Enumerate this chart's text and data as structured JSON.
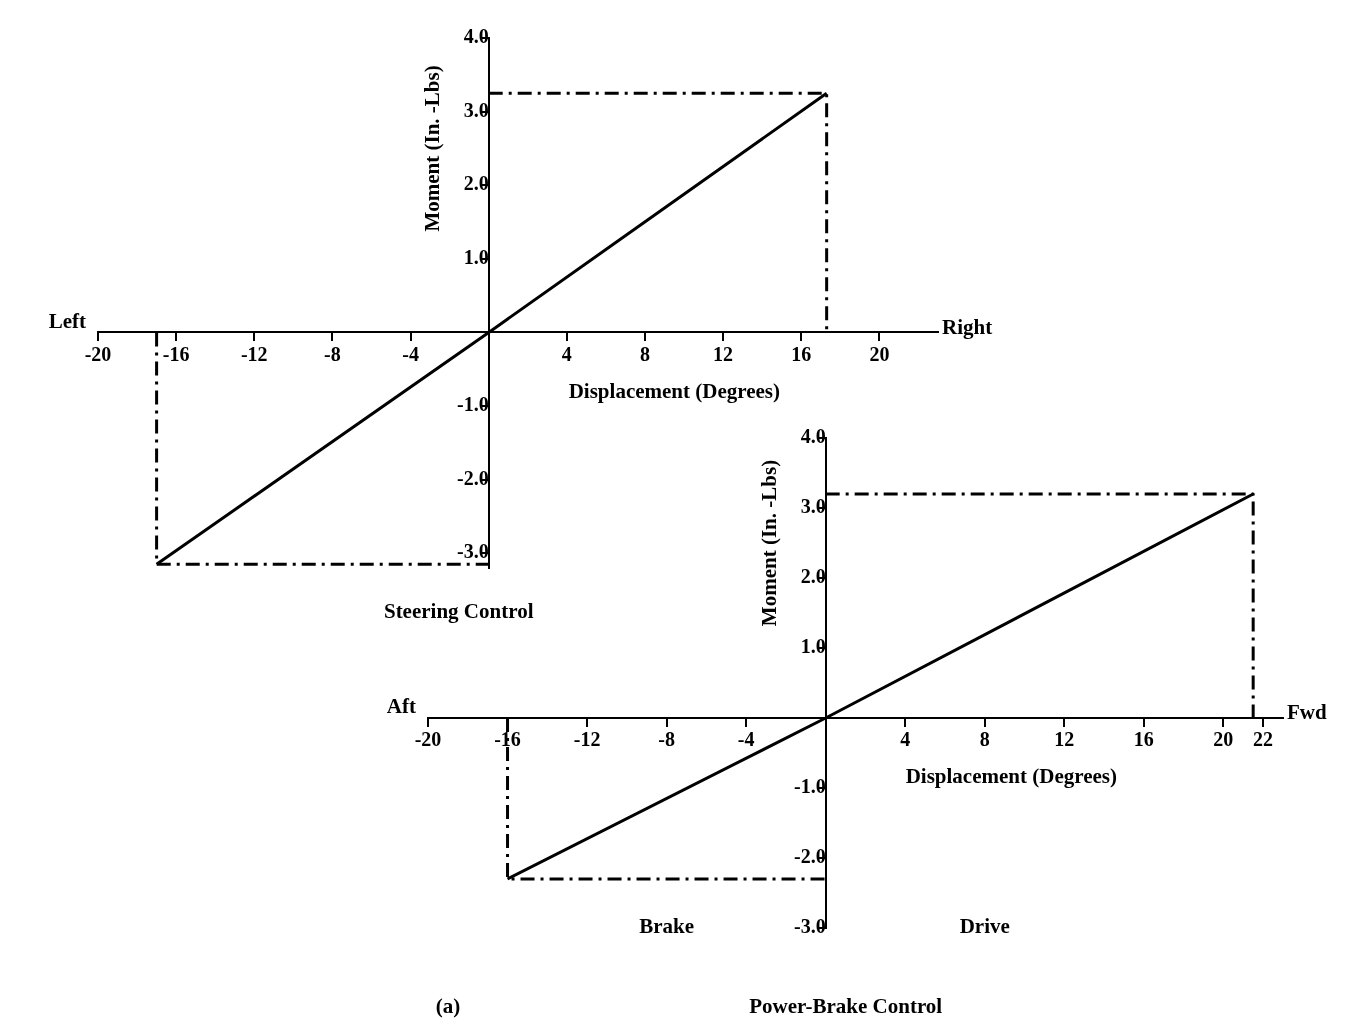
{
  "chart_data": [
    {
      "type": "line",
      "title": "Steering Control",
      "xlabel": "Displacement (Degrees)",
      "ylabel": "Moment (In. -Lbs)",
      "annotations": [
        "Left",
        "Right"
      ],
      "xlim": [
        -20,
        23
      ],
      "ylim": [
        -3.2,
        4
      ],
      "xticks": [
        -20,
        -16,
        -12,
        -8,
        -4,
        4,
        8,
        12,
        16,
        20
      ],
      "yticks": [
        {
          "value": -3,
          "label": "-3.0"
        },
        {
          "value": -2,
          "label": "-2.0"
        },
        {
          "value": -1,
          "label": "-1.0"
        },
        {
          "value": 1,
          "label": "1.0"
        },
        {
          "value": 2,
          "label": "2.0"
        },
        {
          "value": 3,
          "label": "3.0"
        },
        {
          "value": 4,
          "label": "4.0"
        }
      ],
      "grid": false,
      "legend": false,
      "marker": "none",
      "series": [
        {
          "color": "#000000",
          "x": [
            -17,
            0,
            17.3
          ],
          "values": [
            -3.15,
            0,
            3.25
          ]
        },
        {
          "color": "#000000",
          "line_style": "dashed",
          "x": [
            0,
            17.3,
            17.3
          ],
          "values": [
            3.25,
            3.25,
            0
          ]
        },
        {
          "color": "#000000",
          "line_style": "dashed",
          "x": [
            -17,
            -17,
            0
          ],
          "values": [
            0,
            -3.15,
            -3.15
          ]
        }
      ]
    },
    {
      "type": "line",
      "title": "Power-Brake Control",
      "xlabel": "Displacement (Degrees)",
      "ylabel": "Moment (In. -Lbs)",
      "annotations": [
        "Aft",
        "Fwd",
        "Brake",
        "Drive",
        "(a)"
      ],
      "xlim": [
        -20,
        23
      ],
      "ylim": [
        -3,
        4
      ],
      "xticks": [
        -20,
        -16,
        -12,
        -8,
        -4,
        4,
        8,
        12,
        16,
        20,
        22
      ],
      "yticks": [
        {
          "value": -3,
          "label": "-3.0"
        },
        {
          "value": -2,
          "label": "-2.0"
        },
        {
          "value": -1,
          "label": "-1.0"
        },
        {
          "value": 1,
          "label": "1.0"
        },
        {
          "value": 2,
          "label": "2.0"
        },
        {
          "value": 3,
          "label": "3.0"
        },
        {
          "value": 4,
          "label": "4.0"
        }
      ],
      "grid": false,
      "legend": false,
      "marker": "none",
      "series": [
        {
          "color": "#000000",
          "x": [
            -16,
            0,
            21.5
          ],
          "values": [
            -2.3,
            0,
            3.2
          ]
        },
        {
          "color": "#000000",
          "line_style": "dashed",
          "x": [
            0,
            21.5,
            21.5
          ],
          "values": [
            3.2,
            3.2,
            0
          ]
        },
        {
          "color": "#000000",
          "line_style": "dashed",
          "x": [
            -16,
            -16,
            0
          ],
          "values": [
            0,
            -2.3,
            -2.3
          ]
        }
      ]
    }
  ]
}
